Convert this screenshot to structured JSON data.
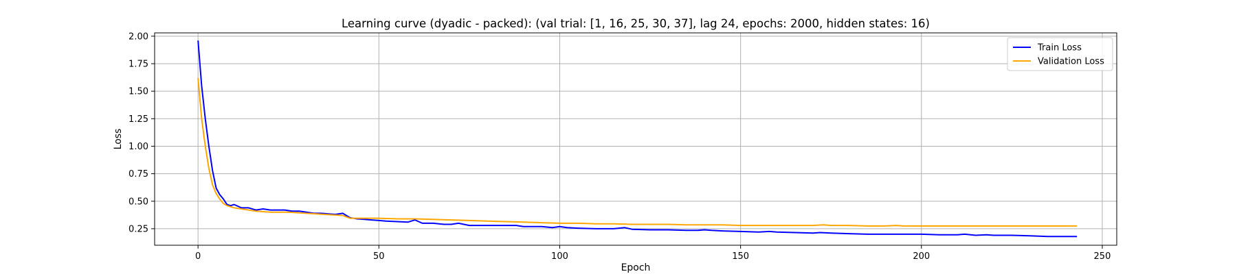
{
  "chart_data": {
    "type": "line",
    "title": "Learning curve (dyadic - packed): (val trial: [1, 16, 25, 30, 37], lag 24, epochs: 2000, hidden states: 16)",
    "xlabel": "Epoch",
    "ylabel": "Loss",
    "xlim": [
      -12,
      254
    ],
    "ylim": [
      0.1,
      2.03
    ],
    "xticks": [
      0,
      50,
      100,
      150,
      200,
      250
    ],
    "xtick_labels": [
      "0",
      "50",
      "100",
      "150",
      "200",
      "250"
    ],
    "yticks": [
      0.25,
      0.5,
      0.75,
      1.0,
      1.25,
      1.5,
      1.75,
      2.0
    ],
    "ytick_labels": [
      "0.25",
      "0.50",
      "0.75",
      "1.00",
      "1.25",
      "1.50",
      "1.75",
      "2.00"
    ],
    "grid": true,
    "legend_position": "top-right",
    "series": [
      {
        "name": "Train Loss",
        "color": "#0000ff",
        "x": [
          0,
          1,
          2,
          3,
          4,
          5,
          6,
          7,
          8,
          9,
          10,
          12,
          14,
          16,
          18,
          20,
          22,
          24,
          26,
          28,
          30,
          32,
          34,
          36,
          38,
          40,
          42,
          44,
          46,
          48,
          50,
          52,
          55,
          58,
          60,
          62,
          65,
          68,
          70,
          72,
          75,
          80,
          85,
          88,
          90,
          92,
          95,
          98,
          100,
          102,
          105,
          110,
          115,
          118,
          120,
          125,
          130,
          135,
          138,
          140,
          142,
          145,
          150,
          155,
          158,
          160,
          165,
          170,
          172,
          175,
          180,
          185,
          190,
          195,
          200,
          205,
          210,
          212,
          215,
          218,
          220,
          225,
          230,
          235,
          240,
          243
        ],
        "y": [
          1.96,
          1.55,
          1.25,
          1.0,
          0.78,
          0.62,
          0.56,
          0.52,
          0.47,
          0.46,
          0.47,
          0.44,
          0.44,
          0.42,
          0.43,
          0.42,
          0.42,
          0.42,
          0.41,
          0.41,
          0.4,
          0.39,
          0.39,
          0.385,
          0.38,
          0.39,
          0.35,
          0.34,
          0.335,
          0.33,
          0.325,
          0.32,
          0.315,
          0.31,
          0.33,
          0.3,
          0.3,
          0.29,
          0.29,
          0.3,
          0.28,
          0.28,
          0.28,
          0.28,
          0.27,
          0.27,
          0.27,
          0.26,
          0.27,
          0.26,
          0.255,
          0.25,
          0.25,
          0.26,
          0.245,
          0.24,
          0.24,
          0.235,
          0.235,
          0.24,
          0.235,
          0.23,
          0.225,
          0.22,
          0.225,
          0.22,
          0.215,
          0.21,
          0.215,
          0.21,
          0.205,
          0.2,
          0.2,
          0.2,
          0.2,
          0.195,
          0.195,
          0.2,
          0.19,
          0.195,
          0.19,
          0.19,
          0.185,
          0.18,
          0.18,
          0.18
        ]
      },
      {
        "name": "Validation Loss",
        "color": "#ffa500",
        "x": [
          0,
          1,
          2,
          3,
          4,
          5,
          6,
          7,
          8,
          9,
          10,
          12,
          14,
          16,
          18,
          20,
          25,
          30,
          35,
          40,
          42,
          45,
          50,
          55,
          60,
          65,
          70,
          75,
          80,
          85,
          90,
          95,
          100,
          105,
          110,
          115,
          120,
          125,
          130,
          135,
          140,
          145,
          150,
          155,
          160,
          165,
          170,
          173,
          175,
          180,
          185,
          190,
          193,
          195,
          200,
          205,
          210,
          215,
          220,
          225,
          230,
          235,
          240,
          243
        ],
        "y": [
          1.62,
          1.25,
          1.0,
          0.8,
          0.65,
          0.57,
          0.52,
          0.48,
          0.46,
          0.45,
          0.44,
          0.43,
          0.42,
          0.41,
          0.405,
          0.4,
          0.4,
          0.39,
          0.38,
          0.37,
          0.345,
          0.345,
          0.345,
          0.34,
          0.34,
          0.335,
          0.33,
          0.325,
          0.32,
          0.315,
          0.31,
          0.305,
          0.3,
          0.3,
          0.295,
          0.295,
          0.29,
          0.29,
          0.29,
          0.285,
          0.285,
          0.285,
          0.28,
          0.28,
          0.28,
          0.28,
          0.28,
          0.285,
          0.28,
          0.28,
          0.275,
          0.275,
          0.28,
          0.275,
          0.275,
          0.275,
          0.275,
          0.275,
          0.275,
          0.275,
          0.275,
          0.275,
          0.275,
          0.275
        ]
      }
    ]
  }
}
